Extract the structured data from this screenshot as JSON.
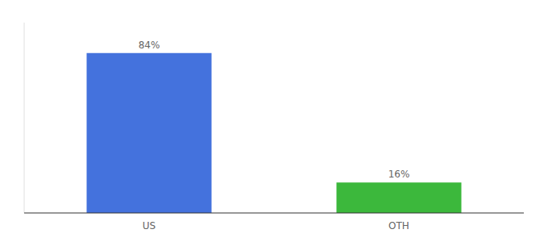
{
  "chart_data": {
    "type": "bar",
    "categories": [
      "US",
      "OTH"
    ],
    "values": [
      84,
      16
    ],
    "value_labels": [
      "84%",
      "16%"
    ],
    "colors": [
      "#4472dd",
      "#3cb83c"
    ],
    "ylim": [
      0,
      100
    ],
    "data_labels": true,
    "tick_labels": "x"
  }
}
